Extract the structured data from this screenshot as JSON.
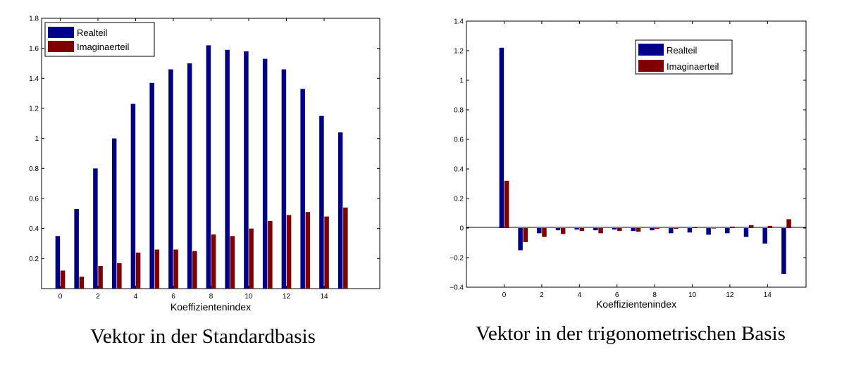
{
  "chart_data": [
    {
      "type": "bar",
      "title": "",
      "caption": "Vektor in der Standardbasis",
      "xlabel": "Koeffizientenindex",
      "ylabel": "",
      "ylim": [
        0.0,
        1.8
      ],
      "yticks": [
        "0.2",
        "0.4",
        "0.6",
        "0.8",
        "1",
        "1.2",
        "1.4",
        "1.6",
        "1.8"
      ],
      "xticks": [
        "0",
        "2",
        "4",
        "6",
        "8",
        "10",
        "12",
        "14"
      ],
      "categories": [
        0,
        1,
        2,
        3,
        4,
        5,
        6,
        7,
        8,
        9,
        10,
        11,
        12,
        13,
        14,
        15
      ],
      "grid": false,
      "legend_position": "top-left",
      "series": [
        {
          "name": "Realteil",
          "color": "#00008b",
          "values": [
            0.35,
            0.53,
            0.8,
            1.0,
            1.23,
            1.37,
            1.46,
            1.5,
            1.62,
            1.59,
            1.58,
            1.53,
            1.46,
            1.33,
            1.15,
            1.04
          ]
        },
        {
          "name": "Imaginaerteil",
          "color": "#800000",
          "values": [
            0.12,
            0.08,
            0.15,
            0.17,
            0.24,
            0.26,
            0.26,
            0.25,
            0.36,
            0.35,
            0.4,
            0.45,
            0.49,
            0.51,
            0.48,
            0.54
          ]
        }
      ]
    },
    {
      "type": "bar",
      "title": "",
      "caption": "Vektor in der trigonometrischen Basis",
      "xlabel": "Koeffizientenindex",
      "ylabel": "",
      "ylim": [
        -0.4,
        1.4
      ],
      "yticks": [
        "−0.4",
        "−0.2",
        "0",
        "0.2",
        "0.4",
        "0.6",
        "0.8",
        "1",
        "1.2",
        "1.4"
      ],
      "xticks": [
        "0",
        "2",
        "4",
        "6",
        "8",
        "10",
        "12",
        "14"
      ],
      "categories": [
        0,
        1,
        2,
        3,
        4,
        5,
        6,
        7,
        8,
        9,
        10,
        11,
        12,
        13,
        14,
        15
      ],
      "grid": false,
      "legend_position": "top-right",
      "series": [
        {
          "name": "Realteil",
          "color": "#00008b",
          "values": [
            1.22,
            -0.15,
            -0.035,
            -0.015,
            -0.01,
            -0.015,
            -0.01,
            -0.02,
            -0.015,
            -0.035,
            -0.03,
            -0.045,
            -0.035,
            -0.06,
            -0.105,
            -0.31
          ]
        },
        {
          "name": "Imaginaerteil",
          "color": "#800000",
          "values": [
            0.32,
            -0.095,
            -0.06,
            -0.04,
            -0.02,
            -0.035,
            -0.02,
            -0.025,
            -0.005,
            -0.005,
            0.005,
            0.0,
            0.01,
            0.02,
            0.015,
            0.06
          ]
        }
      ]
    }
  ]
}
